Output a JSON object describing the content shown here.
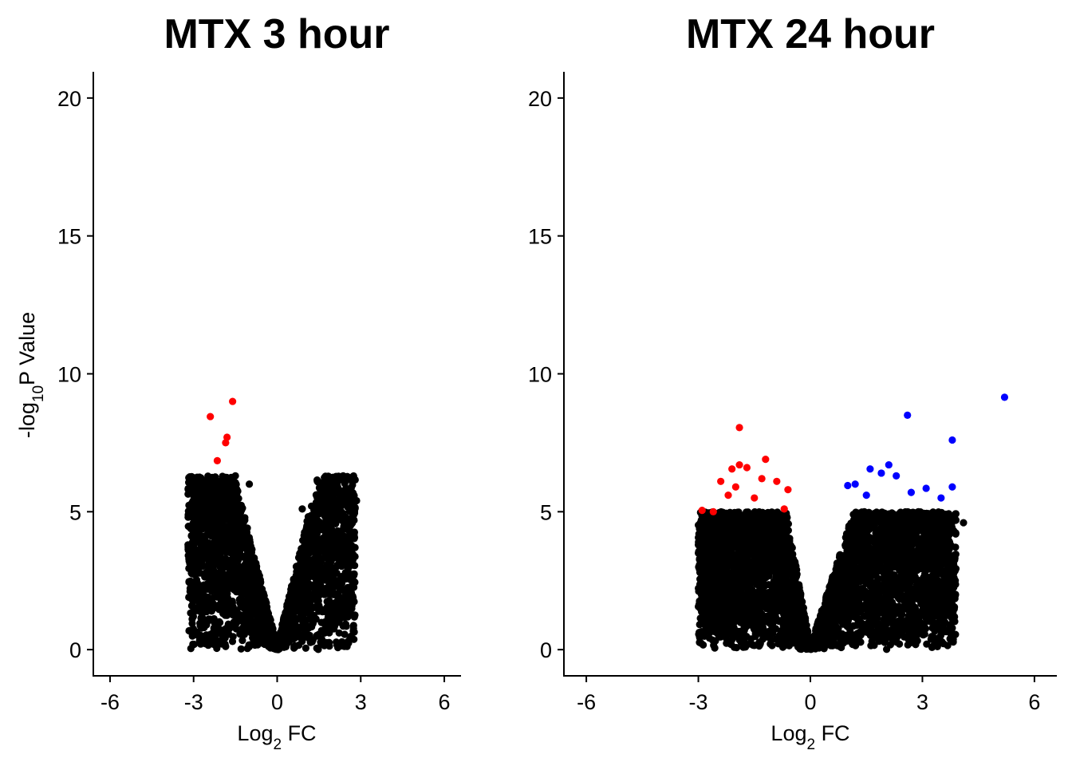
{
  "colors": {
    "down": "#ff0000",
    "up": "#0000ff",
    "ns": "#000000"
  },
  "chart_data": [
    {
      "type": "scatter",
      "title": "MTX 3 hour",
      "xlabel": {
        "base": "Log",
        "sub": "2",
        "rest": " FC"
      },
      "ylabel": {
        "base": "-log",
        "sub": "10",
        "rest": "P Value"
      },
      "xlim": [
        -6.6,
        6.6
      ],
      "ylim": [
        -0.95,
        20.95
      ],
      "xticks": [
        -6,
        -3,
        0,
        3,
        6
      ],
      "yticks": [
        0,
        5,
        10,
        15,
        20
      ],
      "density_envelope": {
        "left_x_min": -3.2,
        "right_x_max": 2.8,
        "max_y_black": 6.3
      },
      "highlighted_points": [
        {
          "x": -1.6,
          "y": 9.0,
          "group": "down"
        },
        {
          "x": -2.4,
          "y": 8.45,
          "group": "down"
        },
        {
          "x": -1.8,
          "y": 7.7,
          "group": "down"
        },
        {
          "x": -1.85,
          "y": 7.5,
          "group": "down"
        },
        {
          "x": -2.15,
          "y": 6.85,
          "group": "down"
        }
      ],
      "outlier_points": [
        {
          "x": 2.85,
          "y": 5.4
        },
        {
          "x": -3.2,
          "y": 3.8
        },
        {
          "x": -3.05,
          "y": 0.95
        },
        {
          "x": -2.4,
          "y": 0.55
        },
        {
          "x": 2.4,
          "y": 3.4
        },
        {
          "x": 1.7,
          "y": 0.6
        },
        {
          "x": 0.9,
          "y": 5.1
        },
        {
          "x": -1.0,
          "y": 6.0
        },
        {
          "x": -1.5,
          "y": 6.3
        }
      ]
    },
    {
      "type": "scatter",
      "title": "MTX 24 hour",
      "xlabel": {
        "base": "Log",
        "sub": "2",
        "rest": " FC"
      },
      "ylabel": {
        "base": "",
        "sub": "",
        "rest": ""
      },
      "xlim": [
        -6.6,
        6.6
      ],
      "ylim": [
        -0.95,
        20.95
      ],
      "xticks": [
        -6,
        -3,
        0,
        3,
        6
      ],
      "yticks": [
        0,
        5,
        10,
        15,
        20
      ],
      "density_envelope": {
        "left_x_min": -3.0,
        "right_x_max": 3.9,
        "max_y_black": 5.0
      },
      "highlighted_points": [
        {
          "x": -1.9,
          "y": 8.05,
          "group": "down"
        },
        {
          "x": -1.2,
          "y": 6.9,
          "group": "down"
        },
        {
          "x": -1.9,
          "y": 6.7,
          "group": "down"
        },
        {
          "x": -1.7,
          "y": 6.6,
          "group": "down"
        },
        {
          "x": -2.1,
          "y": 6.55,
          "group": "down"
        },
        {
          "x": -2.4,
          "y": 6.1,
          "group": "down"
        },
        {
          "x": -1.3,
          "y": 6.2,
          "group": "down"
        },
        {
          "x": -0.9,
          "y": 6.1,
          "group": "down"
        },
        {
          "x": -2.0,
          "y": 5.9,
          "group": "down"
        },
        {
          "x": -0.6,
          "y": 5.8,
          "group": "down"
        },
        {
          "x": -2.2,
          "y": 5.6,
          "group": "down"
        },
        {
          "x": -1.5,
          "y": 5.5,
          "group": "down"
        },
        {
          "x": -2.9,
          "y": 5.05,
          "group": "down"
        },
        {
          "x": -2.6,
          "y": 5.0,
          "group": "down"
        },
        {
          "x": -0.7,
          "y": 5.1,
          "group": "down"
        },
        {
          "x": 2.6,
          "y": 8.5,
          "group": "up"
        },
        {
          "x": 5.2,
          "y": 9.15,
          "group": "up"
        },
        {
          "x": 3.8,
          "y": 7.6,
          "group": "up"
        },
        {
          "x": 2.1,
          "y": 6.7,
          "group": "up"
        },
        {
          "x": 1.6,
          "y": 6.55,
          "group": "up"
        },
        {
          "x": 1.9,
          "y": 6.4,
          "group": "up"
        },
        {
          "x": 2.3,
          "y": 6.3,
          "group": "up"
        },
        {
          "x": 1.2,
          "y": 6.0,
          "group": "up"
        },
        {
          "x": 1.0,
          "y": 5.95,
          "group": "up"
        },
        {
          "x": 3.8,
          "y": 5.9,
          "group": "up"
        },
        {
          "x": 3.1,
          "y": 5.85,
          "group": "up"
        },
        {
          "x": 2.7,
          "y": 5.7,
          "group": "up"
        },
        {
          "x": 1.5,
          "y": 5.6,
          "group": "up"
        },
        {
          "x": 3.5,
          "y": 5.5,
          "group": "up"
        }
      ],
      "outlier_points": [
        {
          "x": -3.0,
          "y": 3.8
        },
        {
          "x": 4.1,
          "y": 4.6
        },
        {
          "x": 3.6,
          "y": 2.8
        },
        {
          "x": -2.5,
          "y": 2.5
        },
        {
          "x": -1.8,
          "y": 0.7
        },
        {
          "x": 2.6,
          "y": 1.0
        },
        {
          "x": 3.3,
          "y": 1.6
        }
      ]
    }
  ]
}
